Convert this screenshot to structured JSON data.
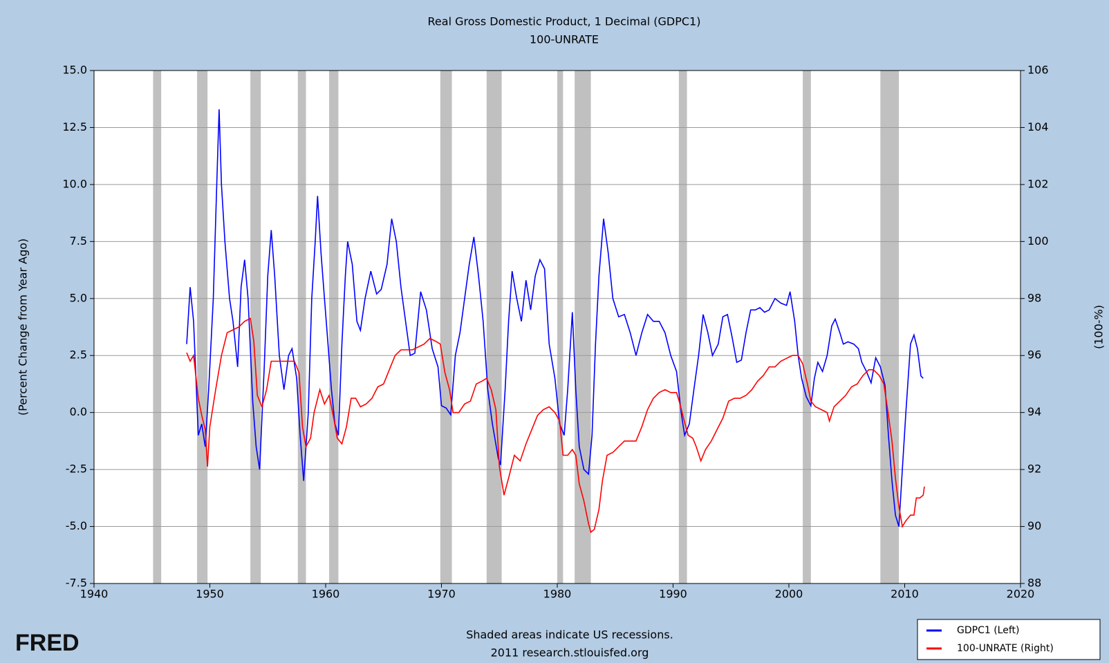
{
  "chart_data": {
    "type": "line",
    "title": "Real Gross Domestic Product, 1 Decimal (GDPC1)",
    "subtitle": "100-UNRATE",
    "y_label": "(Percent Change from Year Ago)",
    "y2_label": "(100-%)",
    "footnote": "Shaded areas indicate US recessions.",
    "source": "2011 research.stlouisfed.org",
    "logo": "FRED",
    "background": "#b4cce4",
    "grid": true,
    "legend": "lower right",
    "recession_color": "#c0c0c0",
    "recessions": [
      [
        1945.1,
        1945.8
      ],
      [
        1948.9,
        1949.8
      ],
      [
        1953.5,
        1954.4
      ],
      [
        1957.6,
        1958.3
      ],
      [
        1960.3,
        1961.1
      ],
      [
        1969.9,
        1970.9
      ],
      [
        1973.9,
        1975.2
      ],
      [
        1980.0,
        1980.5
      ],
      [
        1981.5,
        1982.9
      ],
      [
        1990.5,
        1991.2
      ],
      [
        2001.2,
        2001.9
      ],
      [
        2007.9,
        2009.5
      ]
    ],
    "xlim": [
      1940,
      2020
    ],
    "xticks": [
      1940,
      1950,
      1960,
      1970,
      1980,
      1990,
      2000,
      2010,
      2020
    ],
    "ylim": [
      -7.5,
      15
    ],
    "yticks": [
      {
        "value": -7.5,
        "label": "-7.5"
      },
      {
        "value": -5,
        "label": "-5.0"
      },
      {
        "value": -2.5,
        "label": "-2.5"
      },
      {
        "value": 0,
        "label": "0.0"
      },
      {
        "value": 2.5,
        "label": "2.5"
      },
      {
        "value": 5,
        "label": "5.0"
      },
      {
        "value": 7.5,
        "label": "7.5"
      },
      {
        "value": 10,
        "label": "10.0"
      },
      {
        "value": 12.5,
        "label": "12.5"
      },
      {
        "value": 15,
        "label": "15.0"
      }
    ],
    "y2lim": [
      88,
      106
    ],
    "y2ticks": [
      88,
      90,
      92,
      94,
      96,
      98,
      100,
      102,
      104,
      106
    ],
    "series": [
      {
        "name": "GDPC1 (Left)",
        "color": "#0000ff",
        "x": [
          1948.0,
          1948.3,
          1948.6,
          1949.0,
          1949.3,
          1949.6,
          1949.9,
          1950.3,
          1950.6,
          1950.8,
          1951.0,
          1951.3,
          1951.7,
          1952.0,
          1952.4,
          1952.7,
          1953.0,
          1953.3,
          1953.7,
          1954.0,
          1954.3,
          1954.7,
          1955.0,
          1955.3,
          1955.6,
          1956.0,
          1956.4,
          1956.8,
          1957.1,
          1957.5,
          1957.8,
          1958.1,
          1958.5,
          1958.8,
          1959.1,
          1959.3,
          1959.6,
          1959.9,
          1960.2,
          1960.5,
          1960.8,
          1961.1,
          1961.4,
          1961.7,
          1961.9,
          1962.3,
          1962.7,
          1963.0,
          1963.4,
          1963.9,
          1964.4,
          1964.8,
          1965.3,
          1965.7,
          1966.1,
          1966.5,
          1966.9,
          1967.3,
          1967.7,
          1968.2,
          1968.7,
          1969.2,
          1969.7,
          1970.0,
          1970.4,
          1970.8,
          1971.2,
          1971.6,
          1972.0,
          1972.4,
          1972.8,
          1973.2,
          1973.6,
          1974.0,
          1974.4,
          1974.9,
          1975.1,
          1975.5,
          1975.8,
          1976.1,
          1976.5,
          1976.9,
          1977.3,
          1977.7,
          1978.1,
          1978.5,
          1978.9,
          1979.3,
          1979.8,
          1980.2,
          1980.6,
          1980.9,
          1981.3,
          1981.6,
          1981.9,
          1982.3,
          1982.7,
          1983.0,
          1983.3,
          1983.6,
          1984.0,
          1984.4,
          1984.8,
          1985.3,
          1985.8,
          1986.3,
          1986.8,
          1987.3,
          1987.8,
          1988.3,
          1988.8,
          1989.3,
          1989.8,
          1990.3,
          1990.7,
          1991.0,
          1991.4,
          1991.8,
          1992.2,
          1992.6,
          1993.0,
          1993.4,
          1993.9,
          1994.3,
          1994.7,
          1995.1,
          1995.5,
          1995.9,
          1996.3,
          1996.7,
          1997.1,
          1997.5,
          1997.9,
          1998.3,
          1998.8,
          1999.3,
          1999.8,
          2000.1,
          2000.5,
          2000.8,
          2001.1,
          2001.5,
          2001.9,
          2002.2,
          2002.5,
          2002.9,
          2003.3,
          2003.7,
          2004.0,
          2004.4,
          2004.7,
          2005.1,
          2005.6,
          2006.0,
          2006.3,
          2006.7,
          2007.1,
          2007.5,
          2007.9,
          2008.3,
          2008.6,
          2008.9,
          2009.2,
          2009.5,
          2009.8,
          2010.1,
          2010.5,
          2010.8,
          2011.1,
          2011.4,
          2011.6
        ],
        "values": [
          3.0,
          5.5,
          4,
          -1,
          -0.5,
          -1.5,
          1,
          5,
          10,
          13.3,
          10,
          7.5,
          5,
          4,
          2,
          5.5,
          6.7,
          5,
          0.5,
          -1.5,
          -2.5,
          2,
          6,
          8,
          6,
          2.5,
          1,
          2.5,
          2.8,
          1.5,
          -1,
          -3,
          0,
          5,
          7.5,
          9.5,
          7,
          5,
          3,
          1,
          -0.5,
          -1,
          3,
          6,
          7.5,
          6.5,
          4,
          3.6,
          5,
          6.2,
          5.2,
          5.4,
          6.5,
          8.5,
          7.5,
          5.5,
          4,
          2.5,
          2.6,
          5.3,
          4.5,
          2.8,
          2,
          0.3,
          0.2,
          -0.1,
          2.5,
          3.5,
          5,
          6.5,
          7.7,
          6,
          4,
          1,
          -0.5,
          -2,
          -2.3,
          1,
          4,
          6.2,
          5,
          4,
          5.8,
          4.5,
          6,
          6.7,
          6.3,
          3,
          1.5,
          -0.5,
          -1,
          1,
          4.4,
          1,
          -1.5,
          -2.5,
          -2.7,
          -1,
          3,
          6,
          8.5,
          7,
          5,
          4.2,
          4.3,
          3.5,
          2.5,
          3.5,
          4.3,
          4,
          4,
          3.5,
          2.5,
          1.8,
          0,
          -1,
          -0.5,
          1,
          2.5,
          4.3,
          3.5,
          2.5,
          3,
          4.2,
          4.3,
          3.3,
          2.2,
          2.3,
          3.5,
          4.5,
          4.5,
          4.6,
          4.4,
          4.5,
          5,
          4.8,
          4.7,
          5.3,
          4,
          2.5,
          1.5,
          0.7,
          0.3,
          1.5,
          2.2,
          1.8,
          2.5,
          3.8,
          4.1,
          3.5,
          3.0,
          3.1,
          3.0,
          2.8,
          2.2,
          1.8,
          1.3,
          2.4,
          2.0,
          1.2,
          -1,
          -3,
          -4.5,
          -5,
          -2.5,
          0,
          3,
          3.4,
          2.8,
          1.6,
          1.5
        ]
      },
      {
        "name": "100-UNRATE (Right)",
        "color": "#ff0000",
        "axis": "y2",
        "x": [
          1948.0,
          1948.3,
          1948.6,
          1949.0,
          1949.3,
          1949.6,
          1949.8,
          1950.0,
          1950.5,
          1951.0,
          1951.5,
          1952.0,
          1952.5,
          1953.0,
          1953.5,
          1953.8,
          1954.1,
          1954.5,
          1954.9,
          1955.3,
          1955.8,
          1956.3,
          1956.8,
          1957.3,
          1957.7,
          1958.0,
          1958.3,
          1958.7,
          1959.0,
          1959.5,
          1959.9,
          1960.3,
          1960.7,
          1961.0,
          1961.4,
          1961.8,
          1962.2,
          1962.6,
          1963.0,
          1963.5,
          1964.0,
          1964.5,
          1965.0,
          1965.5,
          1966.0,
          1966.5,
          1967.0,
          1967.5,
          1968.0,
          1968.5,
          1969.0,
          1969.5,
          1969.9,
          1970.3,
          1970.7,
          1971.0,
          1971.5,
          1972.0,
          1972.5,
          1973.0,
          1973.5,
          1973.9,
          1974.3,
          1974.7,
          1975.0,
          1975.4,
          1975.8,
          1976.3,
          1976.8,
          1977.3,
          1977.8,
          1978.3,
          1978.8,
          1979.3,
          1979.8,
          1980.2,
          1980.5,
          1980.9,
          1981.3,
          1981.6,
          1981.9,
          1982.3,
          1982.7,
          1982.9,
          1983.2,
          1983.6,
          1983.9,
          1984.3,
          1984.8,
          1985.3,
          1985.8,
          1986.3,
          1986.8,
          1987.3,
          1987.8,
          1988.3,
          1988.8,
          1989.3,
          1989.8,
          1990.3,
          1990.6,
          1990.9,
          1991.3,
          1991.7,
          1992.0,
          1992.4,
          1992.8,
          1993.3,
          1993.8,
          1994.3,
          1994.8,
          1995.3,
          1995.8,
          1996.3,
          1996.8,
          1997.3,
          1997.8,
          1998.3,
          1998.8,
          1999.3,
          1999.8,
          2000.3,
          2000.8,
          2001.2,
          2001.6,
          2001.9,
          2002.3,
          2002.8,
          2003.3,
          2003.5,
          2003.9,
          2004.4,
          2004.9,
          2005.4,
          2005.9,
          2006.4,
          2006.9,
          2007.3,
          2007.8,
          2008.2,
          2008.6,
          2008.9,
          2009.2,
          2009.5,
          2009.8,
          2010.1,
          2010.5,
          2010.8,
          2011.0,
          2011.3,
          2011.6,
          2011.7
        ],
        "values": [
          96.1,
          95.8,
          96.0,
          94.5,
          93.9,
          93.4,
          92.1,
          93.5,
          94.8,
          96.0,
          96.8,
          96.9,
          97.0,
          97.2,
          97.3,
          96.5,
          94.6,
          94.2,
          94.8,
          95.8,
          95.8,
          95.8,
          95.8,
          95.8,
          95.4,
          93.5,
          92.8,
          93.1,
          94.0,
          94.8,
          94.3,
          94.6,
          93.8,
          93.1,
          92.9,
          93.5,
          94.5,
          94.5,
          94.2,
          94.3,
          94.5,
          94.9,
          95.0,
          95.5,
          96.0,
          96.2,
          96.2,
          96.2,
          96.3,
          96.4,
          96.6,
          96.5,
          96.4,
          95.4,
          94.8,
          94.0,
          94.0,
          94.3,
          94.4,
          95.0,
          95.1,
          95.2,
          94.8,
          94.1,
          92.1,
          91.1,
          91.7,
          92.5,
          92.3,
          92.9,
          93.4,
          93.9,
          94.1,
          94.2,
          94.0,
          93.7,
          92.5,
          92.5,
          92.7,
          92.5,
          91.5,
          90.9,
          90.1,
          89.8,
          89.9,
          90.6,
          91.6,
          92.5,
          92.6,
          92.8,
          93.0,
          93.0,
          93.0,
          93.5,
          94.1,
          94.5,
          94.7,
          94.8,
          94.7,
          94.7,
          94.3,
          93.8,
          93.2,
          93.1,
          92.8,
          92.3,
          92.7,
          93.0,
          93.4,
          93.8,
          94.4,
          94.5,
          94.5,
          94.6,
          94.8,
          95.1,
          95.3,
          95.6,
          95.6,
          95.8,
          95.9,
          96.0,
          96.0,
          95.7,
          95.0,
          94.4,
          94.2,
          94.1,
          94.0,
          93.7,
          94.2,
          94.4,
          94.6,
          94.9,
          95.0,
          95.3,
          95.5,
          95.5,
          95.3,
          95.0,
          93.9,
          93.0,
          91.7,
          90.7,
          90.0,
          90.2,
          90.4,
          90.4,
          91.0,
          91.0,
          91.1,
          91.4
        ]
      }
    ]
  }
}
